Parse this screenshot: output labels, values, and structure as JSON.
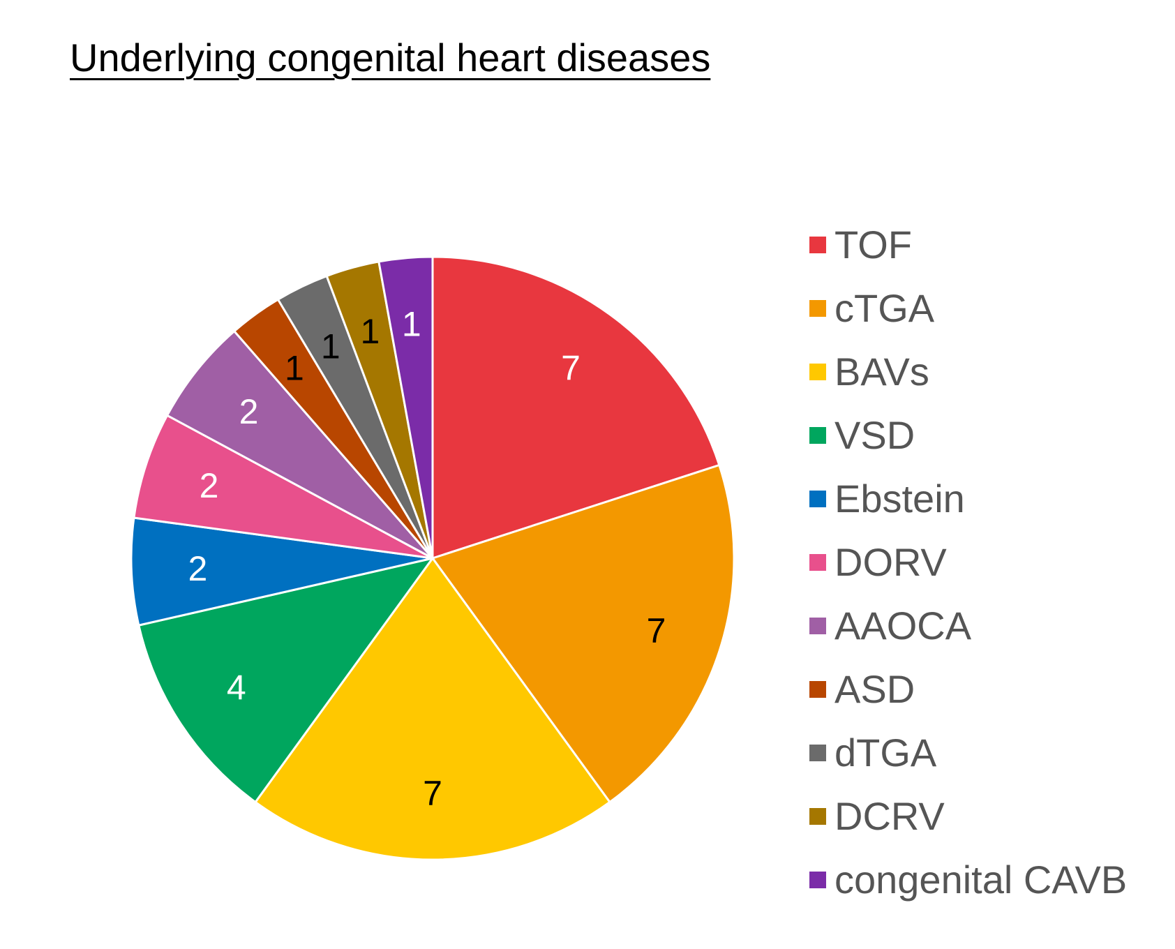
{
  "chart_data": {
    "type": "pie",
    "title": "Underlying congenital heart diseases",
    "legend_position": "right",
    "slices": [
      {
        "label": "TOF",
        "value": 7,
        "color": "#E8373F",
        "label_color": "#FFFFFF"
      },
      {
        "label": "cTGA",
        "value": 7,
        "color": "#F39800",
        "label_color": "#000000"
      },
      {
        "label": "BAVs",
        "value": 7,
        "color": "#FFC800",
        "label_color": "#000000"
      },
      {
        "label": "VSD",
        "value": 4,
        "color": "#00A65E",
        "label_color": "#FFFFFF"
      },
      {
        "label": "Ebstein",
        "value": 2,
        "color": "#0070C0",
        "label_color": "#FFFFFF"
      },
      {
        "label": "DORV",
        "value": 2,
        "color": "#E8508C",
        "label_color": "#FFFFFF"
      },
      {
        "label": "AAOCA",
        "value": 2,
        "color": "#A05FA5",
        "label_color": "#FFFFFF"
      },
      {
        "label": "ASD",
        "value": 1,
        "color": "#B84600",
        "label_color": "#000000"
      },
      {
        "label": "dTGA",
        "value": 1,
        "color": "#6B6B6B",
        "label_color": "#000000"
      },
      {
        "label": "DCRV",
        "value": 1,
        "color": "#A57700",
        "label_color": "#000000"
      },
      {
        "label": "congenital CAVB",
        "value": 1,
        "color": "#7B2CA8",
        "label_color": "#FFFFFF"
      }
    ]
  }
}
